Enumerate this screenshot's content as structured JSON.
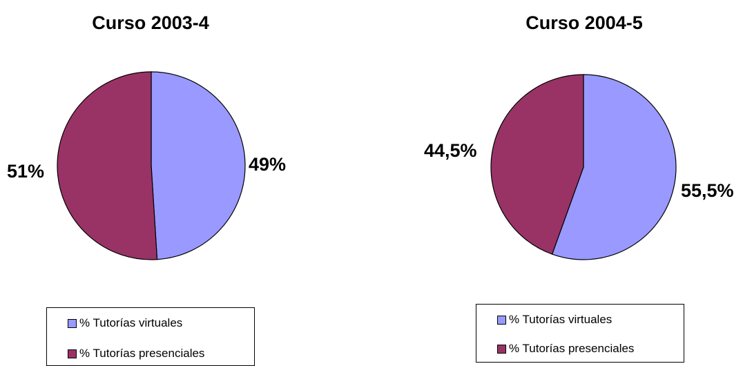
{
  "chart_data": [
    {
      "type": "pie",
      "title": "Curso 2003-4",
      "slices": [
        {
          "label": "% Tutorías virtuales",
          "value": 49,
          "value_label": "49%",
          "color": "#9999FF"
        },
        {
          "label": "% Tutorías presenciales",
          "value": 51,
          "value_label": "51%",
          "color": "#993366"
        }
      ],
      "legend_position": "bottom"
    },
    {
      "type": "pie",
      "title": "Curso 2004-5",
      "slices": [
        {
          "label": "% Tutorías virtuales",
          "value": 55.5,
          "value_label": "55,5%",
          "color": "#9999FF"
        },
        {
          "label": "% Tutorías presenciales",
          "value": 44.5,
          "value_label": "44,5%",
          "color": "#993366"
        }
      ],
      "legend_position": "bottom"
    }
  ]
}
